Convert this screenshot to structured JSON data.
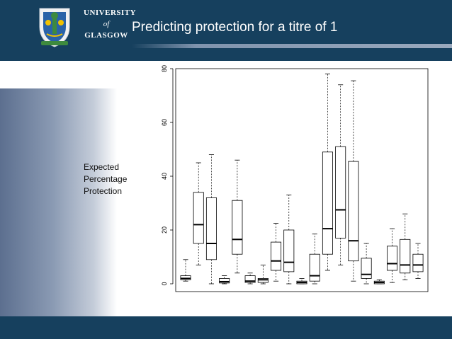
{
  "header": {
    "title": "Predicting protection for a titre of 1",
    "logo": {
      "line1": "UNIVERSITY",
      "line2": "of",
      "line3": "GLASGOW",
      "icon": "university-crest-icon"
    }
  },
  "colors": {
    "header_bg": "#16405e",
    "footer_bg": "#16405e",
    "plot_stroke": "#000000"
  },
  "chart_data": {
    "type": "boxplot",
    "ylabel": "Expected\nPercentage\nProtection",
    "xlabel": "",
    "ylim": [
      0,
      80
    ],
    "yticks": [
      0,
      20,
      40,
      60,
      80
    ],
    "boxes": [
      {
        "min": 1,
        "q1": 1.5,
        "median": 2,
        "q3": 3,
        "max": 9
      },
      {
        "min": 7,
        "q1": 15,
        "median": 22,
        "q3": 34,
        "max": 45
      },
      {
        "min": 0,
        "q1": 9,
        "median": 15,
        "q3": 32,
        "max": 48
      },
      {
        "min": 0,
        "q1": 0.3,
        "median": 0.8,
        "q3": 2,
        "max": 3
      },
      {
        "min": 4,
        "q1": 11,
        "median": 16.5,
        "q3": 31,
        "max": 46
      },
      {
        "min": 0,
        "q1": 0.5,
        "median": 1,
        "q3": 3,
        "max": 4
      },
      {
        "min": 0,
        "q1": 0.5,
        "median": 1.5,
        "q3": 2,
        "max": 7
      },
      {
        "min": 1,
        "q1": 5,
        "median": 8.5,
        "q3": 15.5,
        "max": 22.5
      },
      {
        "min": 0,
        "q1": 4.5,
        "median": 8,
        "q3": 20,
        "max": 33
      },
      {
        "min": 0,
        "q1": 0,
        "median": 0.5,
        "q3": 1,
        "max": 2
      },
      {
        "min": 0,
        "q1": 1,
        "median": 3,
        "q3": 11,
        "max": 18.5
      },
      {
        "min": 5,
        "q1": 11,
        "median": 20.5,
        "q3": 49,
        "max": 78
      },
      {
        "min": 7,
        "q1": 17,
        "median": 27.5,
        "q3": 51,
        "max": 74
      },
      {
        "min": 1,
        "q1": 8.5,
        "median": 16,
        "q3": 45.5,
        "max": 75.5
      },
      {
        "min": 0,
        "q1": 2,
        "median": 3.5,
        "q3": 9.5,
        "max": 15
      },
      {
        "min": 0,
        "q1": 0,
        "median": 0.5,
        "q3": 1,
        "max": 1.5
      },
      {
        "min": 0.5,
        "q1": 5,
        "median": 7.5,
        "q3": 14,
        "max": 20.5
      },
      {
        "min": 1.5,
        "q1": 4,
        "median": 7,
        "q3": 16.5,
        "max": 26
      },
      {
        "min": 2,
        "q1": 4.5,
        "median": 7,
        "q3": 11,
        "max": 15
      }
    ]
  }
}
